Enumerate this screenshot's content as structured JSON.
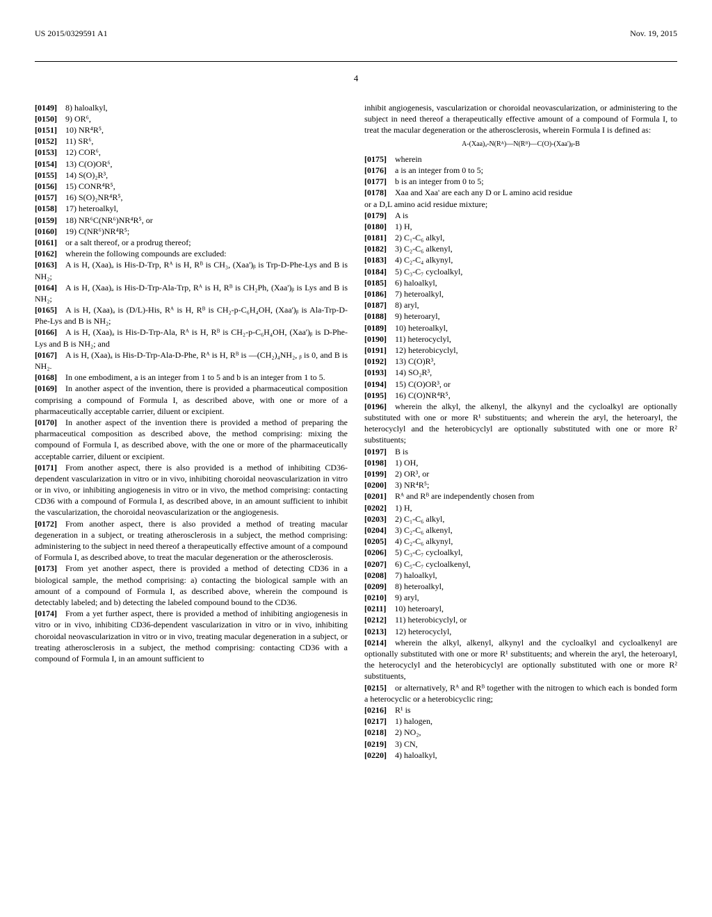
{
  "header": {
    "pub_number": "US 2015/0329591 A1",
    "pub_date": "Nov. 19, 2015"
  },
  "page_number": "4",
  "left_col": {
    "items_a": [
      {
        "n": "[0149]",
        "t": "8) haloalkyl,"
      },
      {
        "n": "[0150]",
        "t": "9) OR⁶,"
      },
      {
        "n": "[0151]",
        "t": "10) NR⁴R⁵,"
      },
      {
        "n": "[0152]",
        "t": "11) SR⁶,"
      },
      {
        "n": "[0153]",
        "t": "12) COR⁶,"
      },
      {
        "n": "[0154]",
        "t": "13) C(O)OR⁶,"
      },
      {
        "n": "[0155]",
        "t": "14) S(O)₂R³,"
      },
      {
        "n": "[0156]",
        "t": "15) CONR⁴R⁵,"
      },
      {
        "n": "[0157]",
        "t": "16) S(O)₂NR⁴R⁵,"
      },
      {
        "n": "[0158]",
        "t": "17) heteroalkyl,"
      },
      {
        "n": "[0159]",
        "t": "18) NR⁶C(NR⁶)NR⁴R⁵, or"
      },
      {
        "n": "[0160]",
        "t": "19) C(NR⁶)NR⁴R⁵;"
      },
      {
        "n": "[0161]",
        "t": "or a salt thereof, or a prodrug thereof;"
      },
      {
        "n": "[0162]",
        "t": "wherein the following compounds are excluded:"
      }
    ],
    "p0163": "A is H, (Xaa)ₐ is His-D-Trp, Rᴬ is H, Rᴮ is CH₃, (Xaa')ᵦ is Trp-D-Phe-Lys and B is NH₂;",
    "p0163n": "[0163]",
    "p0164": "A is H, (Xaa)ₐ is His-D-Trp-Ala-Trp, Rᴬ is H, Rᴮ is CH₂Ph, (Xaa')ᵦ is Lys and B is NH₂;",
    "p0164n": "[0164]",
    "p0165": "A is H, (Xaa)ₐ is (D/L)-His, Rᴬ is H, Rᴮ is CH₂-p-C₆H₄OH, (Xaa')ᵦ is Ala-Trp-D-Phe-Lys and B is NH₂;",
    "p0165n": "[0165]",
    "p0166": "A is H, (Xaa)ₐ is His-D-Trp-Ala, Rᴬ is H, Rᴮ is CH₂-p-C₆H₄OH, (Xaa')ᵦ is D-Phe-Lys and B is NH₂; and",
    "p0166n": "[0166]",
    "p0167": "A is H, (Xaa)ₐ is His-D-Trp-Ala-D-Phe, Rᴬ is H, Rᴮ is —(CH₂)₄NH₂, ᵦ is 0, and B is NH₂.",
    "p0167n": "[0167]",
    "p0168": "In one embodiment, a is an integer from 1 to 5 and b is an integer from 1 to 5.",
    "p0168n": "[0168]",
    "p0169": "In another aspect of the invention, there is provided a pharmaceutical composition comprising a compound of Formula I, as described above, with one or more of a pharmaceutically acceptable carrier, diluent or excipient.",
    "p0169n": "[0169]",
    "p0170": "In another aspect of the invention there is provided a method of preparing the pharmaceutical composition as described above, the method comprising: mixing the compound of Formula I, as described above, with the one or more of the pharmaceutically acceptable carrier, diluent or excipient.",
    "p0170n": "[0170]",
    "p0171": "From another aspect, there is also provided is a method of inhibiting CD36-dependent vascularization in vitro or in vivo, inhibiting choroidal neovascularization in vitro or in vivo, or inhibiting angiogenesis in vitro or in vivo, the method comprising: contacting CD36 with a compound of Formula I, as described above, in an amount sufficient to inhibit the vascularization, the choroidal neovascularization or the angiogenesis.",
    "p0171n": "[0171]",
    "p0172": "From another aspect, there is also provided a method of treating macular degeneration in a subject, or treating atherosclerosis in a subject, the method comprising: administering to the subject in need thereof a therapeutically effective amount of a compound of Formula I, as described above, to treat the macular degeneration or the atherosclerosis.",
    "p0172n": "[0172]",
    "p0173": "From yet another aspect, there is provided a method of detecting CD36 in a biological sample, the method comprising: a) contacting the biological sample with an amount of a compound of Formula I, as described above, wherein the compound is detectably labeled; and b) detecting the labeled compound bound to the CD36.",
    "p0173n": "[0173]",
    "p0174": "From a yet further aspect, there is provided a method of inhibiting angiogenesis in vitro or in vivo, inhibiting CD36-dependent vascularization in vitro or in vivo, inhibiting choroidal neovascularization in vitro or in vivo, treating macular degeneration in a subject, or treating atherosclerosis in a subject, the method comprising: contacting CD36 with a compound of Formula I, in an amount sufficient to",
    "p0174n": "[0174]"
  },
  "right_col": {
    "intro": "inhibit angiogenesis, vascularization or choroidal neovascularization, or administering to the subject in need thereof a therapeutically effective amount of a compound of Formula I, to treat the macular degeneration or the atherosclerosis, wherein Formula I is defined as:",
    "formula": "A-(Xaa)ₐ-N(Rᴬ)—N(Rᴮ)—C(O)-(Xaa')ᵦ-B",
    "items_b": [
      {
        "n": "[0175]",
        "t": "wherein"
      },
      {
        "n": "[0176]",
        "t": "a is an integer from 0 to 5;"
      },
      {
        "n": "[0177]",
        "t": "b is an integer from 0 to 5;"
      },
      {
        "n": "[0178]",
        "t": "Xaa and Xaa' are each any D or L amino acid residue"
      }
    ],
    "or_dl": "or a D,L amino acid residue mixture;",
    "items_c": [
      {
        "n": "[0179]",
        "t": "A is"
      },
      {
        "n": "[0180]",
        "t": "1) H,"
      },
      {
        "n": "[0181]",
        "t": "2) C₁-C₆ alkyl,"
      },
      {
        "n": "[0182]",
        "t": "3) C₂-C₆ alkenyl,"
      },
      {
        "n": "[0183]",
        "t": "4) C₂-C₄ alkynyl,"
      },
      {
        "n": "[0184]",
        "t": "5) C₃-C₇ cycloalkyl,"
      },
      {
        "n": "[0185]",
        "t": "6) haloalkyl,"
      },
      {
        "n": "[0186]",
        "t": "7) heteroalkyl,"
      },
      {
        "n": "[0187]",
        "t": "8) aryl,"
      },
      {
        "n": "[0188]",
        "t": "9) heteroaryl,"
      },
      {
        "n": "[0189]",
        "t": "10) heteroalkyl,"
      },
      {
        "n": "[0190]",
        "t": "11) heterocyclyl,"
      },
      {
        "n": "[0191]",
        "t": "12) heterobicyclyl,"
      },
      {
        "n": "[0192]",
        "t": "13) C(O)R³,"
      },
      {
        "n": "[0193]",
        "t": "14) SO₂R³,"
      },
      {
        "n": "[0194]",
        "t": "15) C(O)OR³, or"
      },
      {
        "n": "[0195]",
        "t": "16) C(O)NR⁴R⁵,"
      }
    ],
    "p0196": "wherein the alkyl, the alkenyl, the alkynyl and the cycloalkyl are optionally substituted with one or more R¹ substituents; and wherein the aryl, the heteroaryl, the heterocyclyl and the heterobicyclyl are optionally substituted with one or more R² substituents;",
    "p0196n": "[0196]",
    "items_d": [
      {
        "n": "[0197]",
        "t": "B is"
      },
      {
        "n": "[0198]",
        "t": "1) OH,"
      },
      {
        "n": "[0199]",
        "t": "2) OR³, or"
      },
      {
        "n": "[0200]",
        "t": "3) NR⁴R⁵;"
      },
      {
        "n": "[0201]",
        "t": "Rᴬ and Rᴮ are independently chosen from"
      },
      {
        "n": "[0202]",
        "t": "1) H,"
      },
      {
        "n": "[0203]",
        "t": "2) C₁-C₆ alkyl,"
      },
      {
        "n": "[0204]",
        "t": "3) C₂-C₆ alkenyl,"
      },
      {
        "n": "[0205]",
        "t": "4) C₂-C₆ alkynyl,"
      },
      {
        "n": "[0206]",
        "t": "5) C₃-C₇ cycloalkyl,"
      },
      {
        "n": "[0207]",
        "t": "6) C₅-C₇ cycloalkenyl,"
      },
      {
        "n": "[0208]",
        "t": "7) haloalkyl,"
      },
      {
        "n": "[0209]",
        "t": "8) heteroalkyl,"
      },
      {
        "n": "[0210]",
        "t": "9) aryl,"
      },
      {
        "n": "[0211]",
        "t": "10) heteroaryl,"
      },
      {
        "n": "[0212]",
        "t": "11) heterobicyclyl, or"
      },
      {
        "n": "[0213]",
        "t": "12) heterocyclyl,"
      }
    ],
    "p0214": "wherein the alkyl, alkenyl, alkynyl and the cycloalkyl and cycloalkenyl are optionally substituted with one or more R¹ substituents; and wherein the aryl, the heteroaryl, the heterocyclyl and the heterobicyclyl are optionally substituted with one or more R² substituents,",
    "p0214n": "[0214]",
    "p0215": "or alternatively, Rᴬ and Rᴮ together with the nitrogen to which each is bonded form a heterocyclic or a heterobicyclic ring;",
    "p0215n": "[0215]",
    "items_e": [
      {
        "n": "[0216]",
        "t": "R¹ is"
      },
      {
        "n": "[0217]",
        "t": "1) halogen,"
      },
      {
        "n": "[0218]",
        "t": "2) NO₂,"
      },
      {
        "n": "[0219]",
        "t": "3) CN,"
      },
      {
        "n": "[0220]",
        "t": "4) haloalkyl,"
      }
    ]
  }
}
